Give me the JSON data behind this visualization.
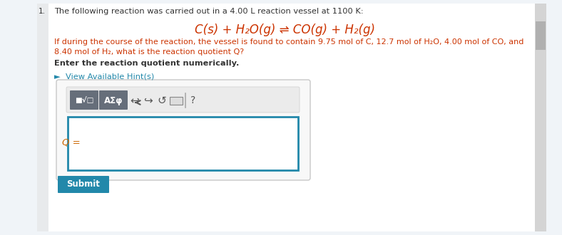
{
  "bg_color": "#f0f4f8",
  "panel_bg": "#ffffff",
  "title_text": "The following reaction was carried out in a 4.00 L reaction vessel at 1100 K:",
  "equation": "C(s) + H₂O(g) ⇌ CO(g) + H₂(g)",
  "body_text_1": "If during the course of the reaction, the vessel is found to contain 9.75 mol of C, 12.7 mol of H₂O, 4.00 mol of CO, and",
  "body_text_2": "8.40 mol of H₂, what is the reaction quotient Q?",
  "bold_text": "Enter the reaction quotient numerically.",
  "hint_text": "►  View Available Hint(s)",
  "hint_color": "#2288aa",
  "q_label": "Q =",
  "submit_label": "Submit",
  "submit_bg": "#2288aa",
  "submit_text_color": "#ffffff",
  "toolbar_bg": "#666e7a",
  "toolbar_light_bg": "#ebebeb",
  "input_border": "#2288aa",
  "outer_box_border": "#c8c8c8",
  "scroll_bg": "#b0b0b0",
  "red_color": "#cc3300",
  "text_color": "#333333",
  "left_strip_color": "#e8eaec",
  "scroll_area_color": "#d4d4d4"
}
